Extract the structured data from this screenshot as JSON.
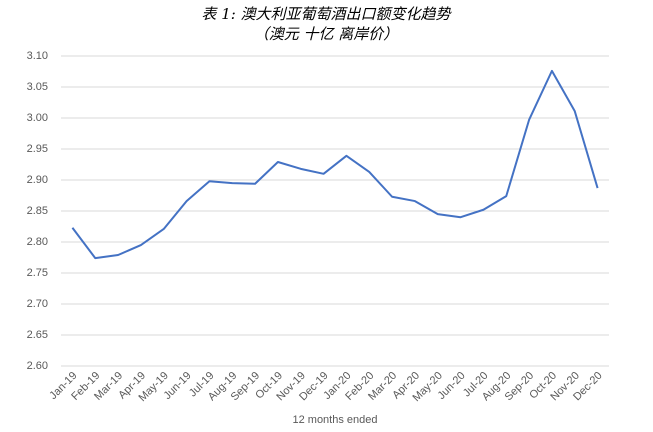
{
  "chart_data": {
    "type": "line",
    "title": "表 1: 澳大利亚葡萄酒出口额变化趋势",
    "subtitle": "（澳元 十亿 离岸价）",
    "x_label": "12 months ended",
    "categories": [
      "Jan-19",
      "Feb-19",
      "Mar-19",
      "Apr-19",
      "May-19",
      "Jun-19",
      "Jul-19",
      "Aug-19",
      "Sep-19",
      "Oct-19",
      "Nov-19",
      "Dec-19",
      "Jan-20",
      "Feb-20",
      "Mar-20",
      "Apr-20",
      "May-20",
      "Jun-20",
      "Jul-20",
      "Aug-20",
      "Sep-20",
      "Oct-20",
      "Nov-20",
      "Dec-20"
    ],
    "values": [
      2.823,
      2.774,
      2.779,
      2.795,
      2.821,
      2.866,
      2.898,
      2.895,
      2.894,
      2.929,
      2.918,
      2.91,
      2.939,
      2.913,
      2.873,
      2.866,
      2.845,
      2.84,
      2.852,
      2.874,
      2.997,
      3.076,
      3.011,
      2.887
    ],
    "color": "#4472c4",
    "ylim": [
      2.6,
      3.1
    ],
    "yticks": [
      {
        "value": 2.6,
        "label": "2.60"
      },
      2.65,
      {
        "value": 2.7,
        "label": "2.70"
      },
      2.75,
      {
        "value": 2.8,
        "label": "2.80"
      },
      2.85,
      {
        "value": 2.9,
        "label": "2.90"
      },
      2.95,
      {
        "value": 3.0,
        "label": "3.00"
      },
      3.05,
      {
        "value": 3.1,
        "label": "3.10"
      }
    ],
    "grid": true
  }
}
